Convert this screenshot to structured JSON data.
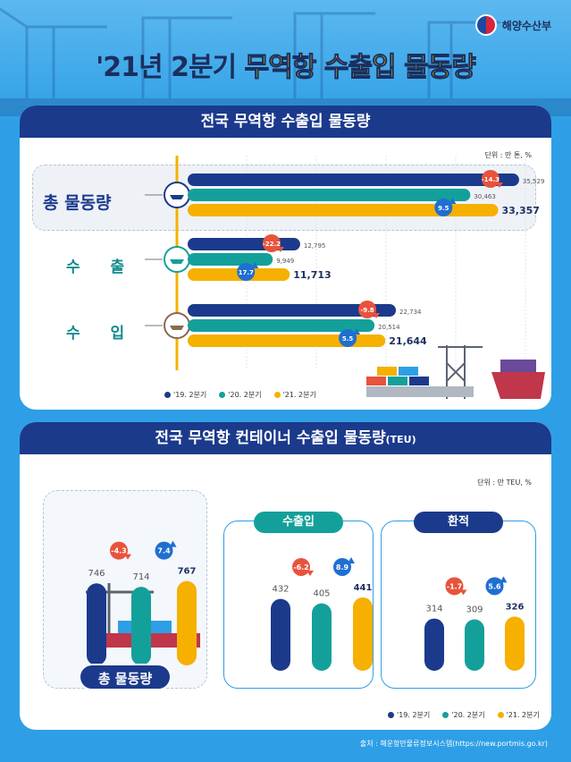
{
  "header": {
    "ministry": "해양수산부",
    "title_part1": "'21년 2분기",
    "title_part2": "무역항 수출입 물동량"
  },
  "section1": {
    "title": "전국 무역항 수출입 물동량",
    "unit": "단위 : 만 톤, %",
    "legend": [
      "'19. 2분기",
      "'20. 2분기",
      "'21. 2분기"
    ]
  },
  "section2": {
    "title_main": "전국 무역항 컨테이너 수출입 물동량",
    "title_suffix": "(TEU)",
    "unit": "단위 : 만 TEU, %",
    "legend": [
      "'19. 2분기",
      "'20. 2분기",
      "'21. 2분기"
    ],
    "total_label": "총 물동량",
    "group_labels": [
      "수출입",
      "환적"
    ]
  },
  "source": "출처 : 해운항만물류정보시스템(https://new.portmis.go.kr)",
  "colors": {
    "y2019": "#1b3a8c",
    "y2020": "#14a09a",
    "y2021": "#f6b000",
    "down": "#e8533c",
    "up": "#1f6fd1"
  },
  "chart_data": [
    {
      "type": "bar",
      "orientation": "horizontal",
      "title": "전국 무역항 수출입 물동량",
      "categories": [
        "총 물동량",
        "수 출",
        "수 입"
      ],
      "series": [
        {
          "name": "'19. 2분기",
          "values": [
            35529,
            12795,
            22734
          ],
          "labels": [
            "35,529",
            "12,795",
            "22,734"
          ]
        },
        {
          "name": "'20. 2분기",
          "values": [
            30463,
            9949,
            20514
          ],
          "labels": [
            "30,463",
            "9,949",
            "20,514"
          ]
        },
        {
          "name": "'21. 2분기",
          "values": [
            33357,
            11713,
            21644
          ],
          "labels": [
            "33,357",
            "11,713",
            "21,644"
          ]
        }
      ],
      "change_down": [
        "-14.3",
        "-22.2",
        "-9.8"
      ],
      "change_up": [
        "9.5",
        "17.7",
        "5.5"
      ],
      "xlim": [
        0,
        36000
      ]
    },
    {
      "type": "bar",
      "title": "총 물동량",
      "categories": [
        "'19. 2분기",
        "'20. 2분기",
        "'21. 2분기"
      ],
      "values": [
        746,
        714,
        767
      ],
      "change_down": "-4.3",
      "change_up": "7.4"
    },
    {
      "type": "bar",
      "title": "수출입",
      "categories": [
        "'19. 2분기",
        "'20. 2분기",
        "'21. 2분기"
      ],
      "values": [
        432,
        405,
        441
      ],
      "change_down": "-6.2",
      "change_up": "8.9"
    },
    {
      "type": "bar",
      "title": "환적",
      "categories": [
        "'19. 2분기",
        "'20. 2분기",
        "'21. 2분기"
      ],
      "values": [
        314,
        309,
        326
      ],
      "change_down": "-1.7",
      "change_up": "5.6"
    }
  ]
}
